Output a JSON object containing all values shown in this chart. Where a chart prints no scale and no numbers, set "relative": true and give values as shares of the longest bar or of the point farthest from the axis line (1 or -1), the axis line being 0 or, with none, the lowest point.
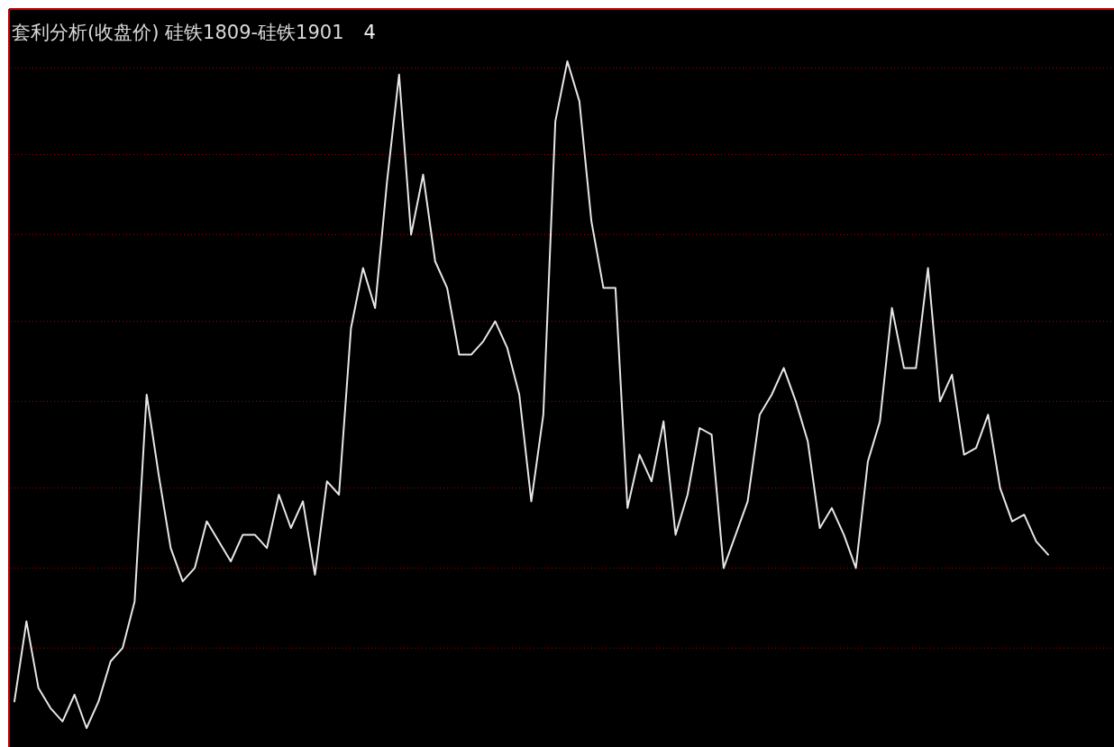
{
  "chart_data": {
    "type": "line",
    "title": "套利分析(收盘价) 硅铁1809-硅铁1901",
    "annotations": [
      "4"
    ],
    "relative": true,
    "ref_lines": [
      {
        "axis": "y",
        "value": 0.99,
        "color": "#b00000",
        "line_style": "dotted"
      },
      {
        "axis": "y",
        "value": 0.86,
        "color": "#b00000",
        "line_style": "dotted"
      },
      {
        "axis": "y",
        "value": 0.74,
        "color": "#b00000",
        "line_style": "dotted"
      },
      {
        "axis": "y",
        "value": 0.61,
        "color": "#b00000",
        "line_style": "dotted"
      },
      {
        "axis": "y",
        "value": 0.49,
        "color": "#b00000",
        "line_style": "dotted"
      },
      {
        "axis": "y",
        "value": 0.36,
        "color": "#b00000",
        "line_style": "dotted"
      },
      {
        "axis": "y",
        "value": 0.24,
        "color": "#b00000",
        "line_style": "dotted"
      },
      {
        "axis": "y",
        "value": 0.12,
        "color": "#b00000",
        "line_style": "dotted"
      }
    ],
    "marker": "none",
    "line_style": "solid",
    "categories": [
      null,
      null,
      null,
      null,
      null,
      null,
      null,
      null,
      null,
      null,
      null,
      null,
      null,
      null,
      null,
      null,
      null,
      null,
      null,
      null,
      null,
      null,
      null,
      null,
      null,
      null,
      null,
      null,
      null,
      null,
      null,
      null,
      null,
      null,
      null,
      null,
      null,
      null,
      null,
      null,
      null,
      null,
      null,
      null,
      null,
      null,
      null,
      null,
      null,
      null,
      null,
      null,
      null,
      null,
      null,
      null,
      null,
      null,
      null,
      null,
      null,
      null,
      null,
      null,
      null,
      null,
      null,
      null,
      null,
      null,
      null,
      null,
      null,
      null,
      null,
      null,
      null,
      null,
      null,
      null,
      null,
      null,
      null,
      null,
      null,
      null,
      null
    ],
    "series": [
      {
        "color": "#e6e6e6",
        "values": [
          0.04,
          0.16,
          0.06,
          0.03,
          0.01,
          0.05,
          0,
          0.04,
          0.1,
          0.12,
          0.19,
          0.5,
          0.38,
          0.27,
          0.22,
          0.24,
          0.31,
          0.28,
          0.25,
          0.29,
          0.29,
          0.27,
          0.35,
          0.3,
          0.34,
          0.23,
          0.37,
          0.35,
          0.6,
          0.69,
          0.63,
          0.82,
          0.98,
          0.74,
          0.83,
          0.7,
          0.66,
          0.56,
          0.56,
          0.58,
          0.61,
          0.57,
          0.5,
          0.34,
          0.47,
          0.91,
          1,
          0.94,
          0.76,
          0.66,
          0.66,
          0.33,
          0.41,
          0.37,
          0.46,
          0.29,
          0.35,
          0.45,
          0.44,
          0.24,
          0.29,
          0.34,
          0.47,
          0.5,
          0.54,
          0.49,
          0.43,
          0.3,
          0.33,
          0.29,
          0.24,
          0.4,
          0.46,
          0.63,
          0.54,
          0.54,
          0.69,
          0.49,
          0.53,
          0.41,
          0.42,
          0.47,
          0.36,
          0.31,
          0.32,
          0.28,
          0.26
        ]
      }
    ]
  }
}
